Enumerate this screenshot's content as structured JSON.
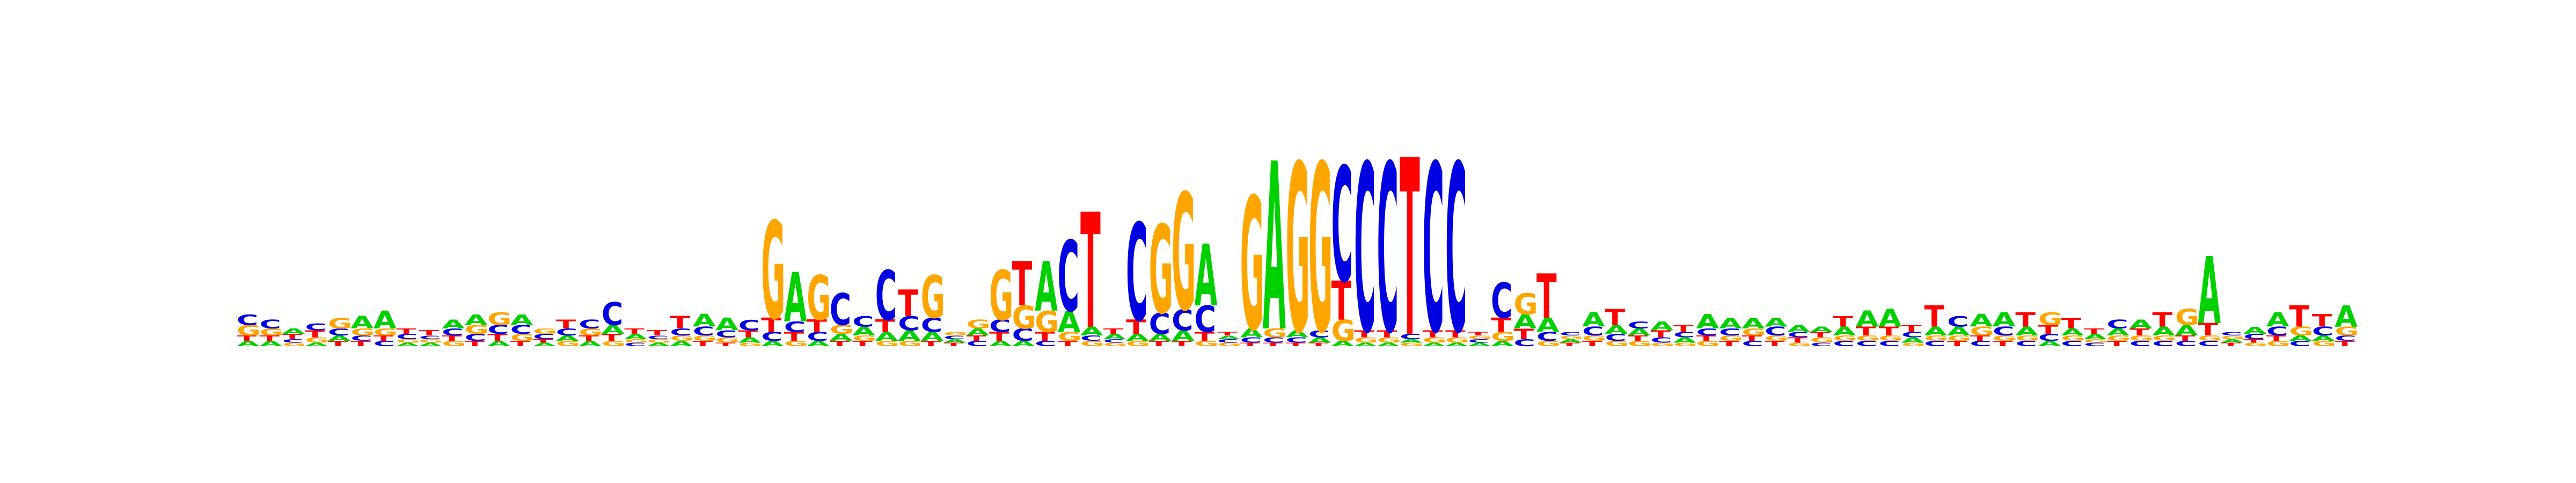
{
  "chart_data": {
    "type": "sequence-logo",
    "title": "",
    "xlabel": "",
    "ylabel": "",
    "alphabet": [
      "A",
      "C",
      "G",
      "T"
    ],
    "colors": {
      "A": "#00d000",
      "C": "#0000e0",
      "G": "#ffa500",
      "T": "#ff0000"
    },
    "ylim": [
      0,
      2
    ],
    "positions": [
      {
        "G": 0.06,
        "C": 0.06,
        "A": 0.03,
        "T": 0.03
      },
      {
        "C": 0.05,
        "G": 0.04,
        "A": 0.03,
        "T": 0.03
      },
      {
        "T": 0.03,
        "A": 0.03,
        "G": 0.02,
        "C": 0.02
      },
      {
        "T": 0.04,
        "C": 0.04,
        "G": 0.03,
        "A": 0.02
      },
      {
        "G": 0.06,
        "C": 0.04,
        "T": 0.03,
        "A": 0.03
      },
      {
        "A": 0.07,
        "G": 0.04,
        "T": 0.03,
        "C": 0.03
      },
      {
        "A": 0.1,
        "G": 0.04,
        "C": 0.03,
        "T": 0.03
      },
      {
        "C": 0.03,
        "T": 0.03,
        "A": 0.02,
        "G": 0.02
      },
      {
        "T": 0.03,
        "A": 0.02,
        "G": 0.02,
        "C": 0.02
      },
      {
        "A": 0.05,
        "C": 0.04,
        "G": 0.03,
        "T": 0.03
      },
      {
        "A": 0.06,
        "G": 0.05,
        "C": 0.04,
        "T": 0.03
      },
      {
        "G": 0.07,
        "C": 0.05,
        "T": 0.04,
        "A": 0.03
      },
      {
        "A": 0.06,
        "C": 0.05,
        "G": 0.04,
        "T": 0.03
      },
      {
        "C": 0.03,
        "G": 0.03,
        "A": 0.02,
        "T": 0.02
      },
      {
        "T": 0.05,
        "C": 0.04,
        "G": 0.03,
        "A": 0.03
      },
      {
        "C": 0.05,
        "G": 0.04,
        "A": 0.03,
        "T": 0.03
      },
      {
        "C": 0.13,
        "A": 0.05,
        "T": 0.04,
        "G": 0.03
      },
      {
        "A": 0.03,
        "T": 0.03,
        "C": 0.02,
        "G": 0.02
      },
      {
        "T": 0.03,
        "A": 0.02,
        "G": 0.02,
        "C": 0.02
      },
      {
        "T": 0.07,
        "C": 0.04,
        "A": 0.03,
        "G": 0.03
      },
      {
        "A": 0.07,
        "C": 0.05,
        "T": 0.03,
        "G": 0.03
      },
      {
        "A": 0.07,
        "C": 0.04,
        "G": 0.03,
        "T": 0.02
      },
      {
        "C": 0.06,
        "T": 0.04,
        "A": 0.03,
        "G": 0.02
      },
      {
        "G": 0.55,
        "T": 0.08,
        "C": 0.05,
        "A": 0.03
      },
      {
        "A": 0.28,
        "C": 0.06,
        "T": 0.05,
        "G": 0.03
      },
      {
        "G": 0.25,
        "T": 0.07,
        "C": 0.05,
        "A": 0.03
      },
      {
        "C": 0.18,
        "G": 0.05,
        "A": 0.04,
        "T": 0.03
      },
      {
        "C": 0.06,
        "A": 0.05,
        "T": 0.03,
        "G": 0.03
      },
      {
        "C": 0.28,
        "T": 0.07,
        "A": 0.05,
        "G": 0.03
      },
      {
        "T": 0.15,
        "C": 0.08,
        "A": 0.06,
        "G": 0.03
      },
      {
        "G": 0.24,
        "C": 0.08,
        "A": 0.05,
        "T": 0.03
      },
      {
        "T": 0.02,
        "A": 0.02,
        "C": 0.02,
        "G": 0.02
      },
      {
        "G": 0.05,
        "A": 0.04,
        "C": 0.03,
        "T": 0.03
      },
      {
        "G": 0.28,
        "C": 0.07,
        "T": 0.05,
        "A": 0.03
      },
      {
        "T": 0.25,
        "G": 0.13,
        "C": 0.07,
        "A": 0.03
      },
      {
        "A": 0.28,
        "G": 0.12,
        "T": 0.05,
        "C": 0.03
      },
      {
        "C": 0.4,
        "A": 0.12,
        "G": 0.05,
        "T": 0.03
      },
      {
        "T": 0.65,
        "A": 0.05,
        "G": 0.03,
        "C": 0.03
      },
      {
        "A": 0.03,
        "T": 0.03,
        "G": 0.02,
        "C": 0.02
      },
      {
        "C": 0.55,
        "T": 0.08,
        "A": 0.04,
        "G": 0.03
      },
      {
        "G": 0.5,
        "C": 0.12,
        "A": 0.04,
        "T": 0.03
      },
      {
        "G": 0.66,
        "C": 0.12,
        "A": 0.06,
        "T": 0.03
      },
      {
        "A": 0.35,
        "C": 0.15,
        "T": 0.05,
        "G": 0.03
      },
      {
        "G": 0.02,
        "C": 0.02,
        "A": 0.02,
        "T": 0.02
      },
      {
        "G": 0.75,
        "A": 0.05,
        "C": 0.03,
        "T": 0.02
      },
      {
        "A": 0.95,
        "G": 0.05,
        "C": 0.03,
        "T": 0.02
      },
      {
        "G": 0.95,
        "A": 0.04,
        "C": 0.03,
        "T": 0.02
      },
      {
        "G": 0.95,
        "C": 0.04,
        "A": 0.03,
        "T": 0.02
      },
      {
        "C": 0.65,
        "T": 0.22,
        "G": 0.12,
        "A": 0.03
      },
      {
        "C": 0.95,
        "T": 0.04,
        "G": 0.03,
        "A": 0.02
      },
      {
        "C": 0.95,
        "T": 0.04,
        "G": 0.03,
        "A": 0.02
      },
      {
        "T": 1.0,
        "C": 0.03,
        "G": 0.02,
        "A": 0.02
      },
      {
        "C": 0.95,
        "T": 0.04,
        "G": 0.03,
        "A": 0.02
      },
      {
        "C": 0.95,
        "T": 0.04,
        "G": 0.03,
        "A": 0.02
      },
      {
        "A": 0.02,
        "C": 0.02,
        "G": 0.02,
        "T": 0.02
      },
      {
        "C": 0.2,
        "T": 0.08,
        "G": 0.05,
        "A": 0.03
      },
      {
        "G": 0.12,
        "A": 0.08,
        "T": 0.06,
        "C": 0.04
      },
      {
        "T": 0.25,
        "A": 0.08,
        "C": 0.05,
        "G": 0.03
      },
      {
        "T": 0.02,
        "A": 0.02,
        "G": 0.02,
        "C": 0.02
      },
      {
        "A": 0.08,
        "C": 0.05,
        "T": 0.03,
        "G": 0.03
      },
      {
        "T": 0.09,
        "A": 0.05,
        "C": 0.04,
        "G": 0.03
      },
      {
        "A": 0.04,
        "C": 0.04,
        "G": 0.03,
        "T": 0.03
      },
      {
        "A": 0.05,
        "T": 0.04,
        "C": 0.03,
        "G": 0.02
      },
      {
        "T": 0.04,
        "A": 0.03,
        "C": 0.03,
        "G": 0.02
      },
      {
        "A": 0.08,
        "C": 0.04,
        "G": 0.03,
        "T": 0.03
      },
      {
        "A": 0.06,
        "C": 0.04,
        "T": 0.03,
        "G": 0.03
      },
      {
        "A": 0.06,
        "G": 0.04,
        "C": 0.03,
        "T": 0.03
      },
      {
        "C": 0.05,
        "A": 0.05,
        "T": 0.03,
        "G": 0.03
      },
      {
        "A": 0.04,
        "T": 0.03,
        "C": 0.03,
        "G": 0.02
      },
      {
        "G": 0.03,
        "T": 0.03,
        "A": 0.03,
        "C": 0.02
      },
      {
        "T": 0.06,
        "A": 0.05,
        "C": 0.03,
        "G": 0.03
      },
      {
        "A": 0.09,
        "T": 0.05,
        "C": 0.03,
        "G": 0.03
      },
      {
        "A": 0.1,
        "T": 0.05,
        "C": 0.03,
        "G": 0.03
      },
      {
        "T": 0.04,
        "A": 0.03,
        "C": 0.03,
        "G": 0.02
      },
      {
        "T": 0.12,
        "A": 0.05,
        "C": 0.03,
        "G": 0.03
      },
      {
        "C": 0.06,
        "A": 0.05,
        "T": 0.03,
        "G": 0.03
      },
      {
        "A": 0.07,
        "G": 0.05,
        "C": 0.03,
        "T": 0.03
      },
      {
        "A": 0.08,
        "C": 0.05,
        "T": 0.03,
        "G": 0.03
      },
      {
        "T": 0.08,
        "A": 0.05,
        "C": 0.03,
        "G": 0.03
      },
      {
        "G": 0.07,
        "T": 0.05,
        "C": 0.04,
        "A": 0.03
      },
      {
        "T": 0.06,
        "A": 0.04,
        "C": 0.03,
        "G": 0.03
      },
      {
        "A": 0.03,
        "T": 0.03,
        "C": 0.02,
        "G": 0.02
      },
      {
        "C": 0.05,
        "A": 0.04,
        "T": 0.03,
        "G": 0.03
      },
      {
        "A": 0.05,
        "T": 0.04,
        "C": 0.03,
        "G": 0.03
      },
      {
        "T": 0.08,
        "A": 0.05,
        "C": 0.03,
        "G": 0.03
      },
      {
        "G": 0.09,
        "A": 0.06,
        "C": 0.03,
        "T": 0.03
      },
      {
        "A": 0.38,
        "T": 0.07,
        "C": 0.03,
        "G": 0.03
      },
      {
        "T": 0.02,
        "A": 0.02,
        "G": 0.02,
        "C": 0.02
      },
      {
        "A": 0.04,
        "C": 0.03,
        "G": 0.02,
        "T": 0.02
      },
      {
        "A": 0.08,
        "C": 0.05,
        "G": 0.03,
        "T": 0.03
      },
      {
        "T": 0.12,
        "G": 0.05,
        "C": 0.03,
        "A": 0.03
      },
      {
        "T": 0.07,
        "C": 0.05,
        "G": 0.03,
        "A": 0.03
      },
      {
        "A": 0.12,
        "G": 0.05,
        "T": 0.03,
        "C": 0.03
      }
    ]
  }
}
